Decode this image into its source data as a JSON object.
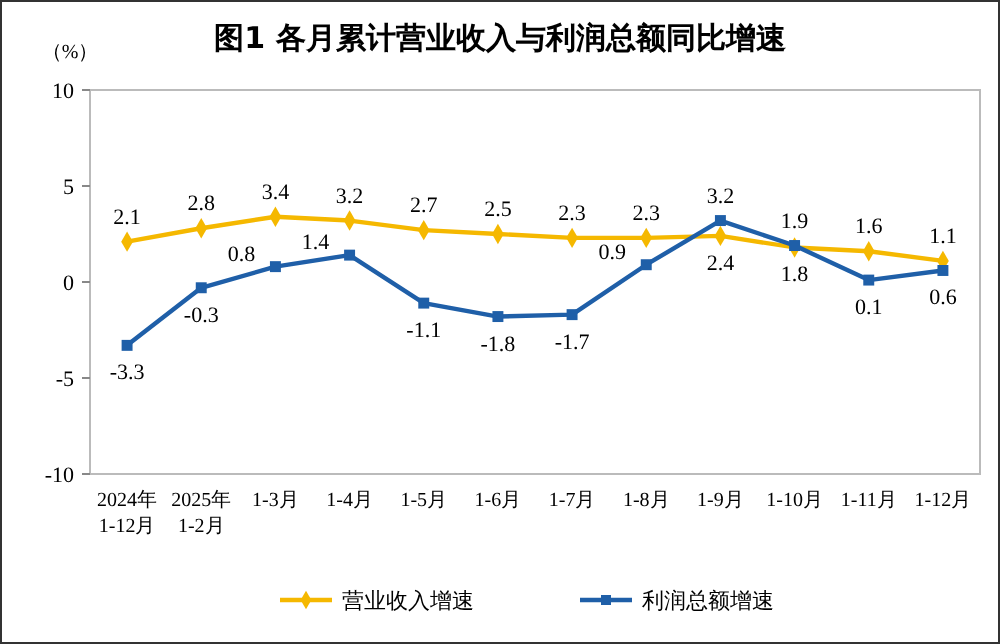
{
  "chart_data": {
    "type": "line",
    "title": "图1  各月累计营业收入与利润总额同比增速",
    "ylabel": "（%）",
    "categories": [
      "2024年\n1-12月",
      "2025年\n1-2月",
      "1-3月",
      "1-4月",
      "1-5月",
      "1-6月",
      "1-7月",
      "1-8月",
      "1-9月",
      "1-10月",
      "1-11月",
      "1-12月"
    ],
    "series": [
      {
        "name": "营业收入增速",
        "color": "#f5b800",
        "marker": "diamond",
        "values": [
          2.1,
          2.8,
          3.4,
          3.2,
          2.7,
          2.5,
          2.3,
          2.3,
          2.4,
          1.8,
          1.6,
          1.1
        ]
      },
      {
        "name": "利润总额增速",
        "color": "#1f5fa8",
        "marker": "square",
        "values": [
          -3.3,
          -0.3,
          0.8,
          1.4,
          -1.1,
          -1.8,
          -1.7,
          0.9,
          3.2,
          1.9,
          0.1,
          0.6
        ]
      }
    ],
    "ylim": [
      -10,
      10
    ],
    "yticks": [
      -10,
      -5,
      0,
      5,
      10
    ],
    "data_labels": true,
    "legend": "bottom",
    "grid": false
  }
}
